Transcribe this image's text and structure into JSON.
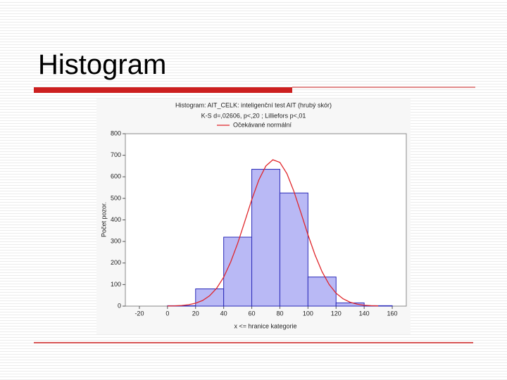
{
  "slide": {
    "title": "Histogram"
  },
  "chart_data": {
    "type": "histogram",
    "title": "Histogram: AIT_CELK: inteligenční test AIT (hrubý skór)",
    "subtitle": "K-S d=,02606, p<,20 ; Lilliefors p<,01",
    "xlabel": "x <= hranice kategorie",
    "ylabel": "Počet pozor.",
    "bins": [
      0,
      20,
      40,
      60,
      80,
      100,
      120,
      140,
      160
    ],
    "counts": [
      2,
      80,
      320,
      635,
      525,
      135,
      15,
      2
    ],
    "color": "#b9b9f5",
    "edge_color": "#2b2bb8",
    "curve": {
      "name": "Očekávané normální",
      "color": "#e0262b",
      "x": [
        0,
        5,
        10,
        15,
        20,
        25,
        30,
        35,
        40,
        45,
        50,
        55,
        60,
        65,
        70,
        75,
        80,
        85,
        90,
        95,
        100,
        105,
        110,
        115,
        120,
        125,
        130,
        135,
        140,
        145,
        150
      ],
      "values": [
        0.5,
        1.2,
        2.9,
        6.5,
        13.5,
        26,
        48,
        83,
        134,
        205,
        292,
        392,
        494,
        585,
        650,
        679,
        667,
        615,
        532,
        433,
        331,
        238,
        160,
        101,
        60,
        34,
        18,
        9,
        4,
        2,
        1
      ]
    },
    "xlim": [
      -30,
      170
    ],
    "ylim": [
      0,
      800
    ],
    "xticks": [
      -20,
      0,
      20,
      40,
      60,
      80,
      100,
      120,
      140,
      160
    ],
    "yticks": [
      0,
      100,
      200,
      300,
      400,
      500,
      600,
      700,
      800
    ]
  }
}
